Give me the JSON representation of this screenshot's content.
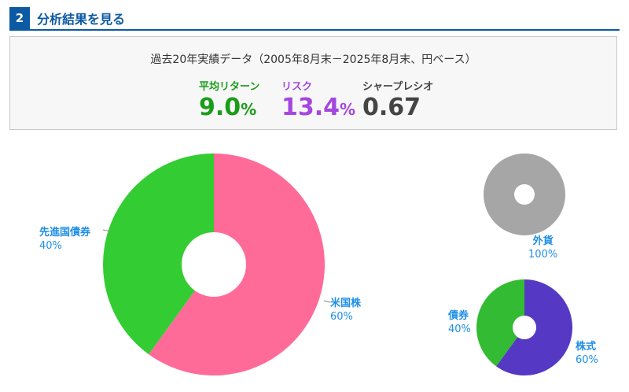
{
  "header": {
    "number": "2",
    "title": "分析結果を見る"
  },
  "summary": {
    "subtitle": "過去20年実績データ（2005年8月末－2025年8月末、円ベース）",
    "metrics": [
      {
        "label": "平均リターン",
        "value": "9.0",
        "unit": "%",
        "color": "#1a9c1a"
      },
      {
        "label": "リスク",
        "value": "13.4",
        "unit": "%",
        "color": "#a347e0"
      },
      {
        "label": "シャープレシオ",
        "value": "0.67",
        "unit": "",
        "color": "#444444"
      }
    ]
  },
  "chart_data": [
    {
      "type": "pie",
      "slices": [
        {
          "label": "米国株",
          "value": 60,
          "value_label": "60%",
          "color": "#ff6b99"
        },
        {
          "label": "先進国債券",
          "value": 40,
          "value_label": "40%",
          "color": "#33cc33"
        }
      ]
    },
    {
      "type": "pie",
      "slices": [
        {
          "label": "外貨",
          "value": 100,
          "value_label": "100%",
          "color": "#a6a6a6"
        }
      ]
    },
    {
      "type": "pie",
      "slices": [
        {
          "label": "株式",
          "value": 60,
          "value_label": "60%",
          "color": "#5538c4"
        },
        {
          "label": "債券",
          "value": 40,
          "value_label": "40%",
          "color": "#33bb33"
        }
      ]
    }
  ]
}
